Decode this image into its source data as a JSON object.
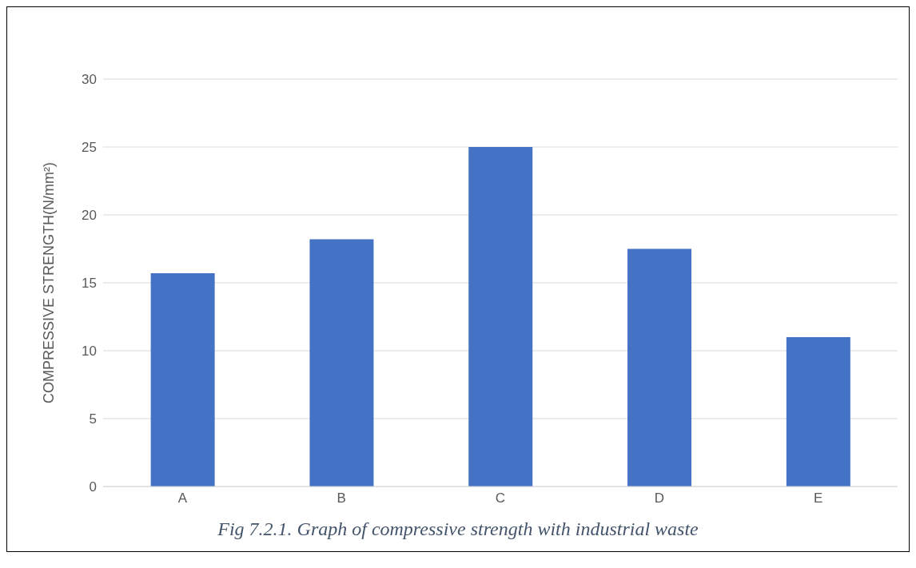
{
  "chart_data": {
    "type": "bar",
    "ylabel": "COMPRESSIVE STRENGTH(N/mm²)",
    "categories": [
      "A",
      "B",
      "C",
      "D",
      "E"
    ],
    "values": [
      15.7,
      18.2,
      25,
      17.5,
      11
    ],
    "color": "#4472c4",
    "ylim": [
      0,
      30
    ],
    "yticks": [
      0,
      5,
      10,
      15,
      20,
      25,
      30
    ],
    "grid": "y",
    "annotations": [
      "Fig 7.2.1. Graph of compressive strength with industrial waste"
    ]
  }
}
